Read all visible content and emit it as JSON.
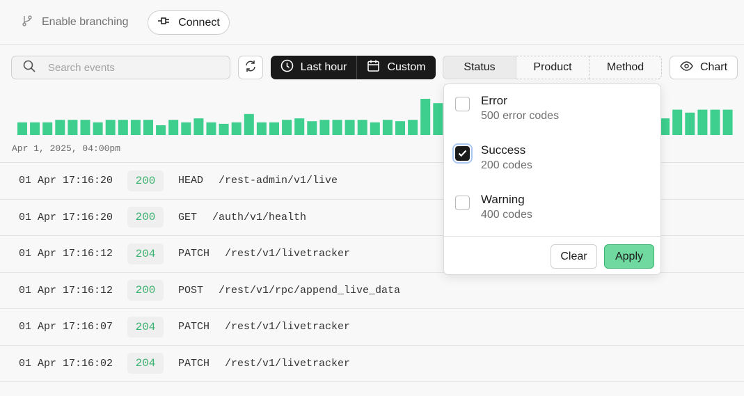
{
  "topbar": {
    "branching_label": "Enable branching",
    "connect_label": "Connect"
  },
  "toolbar": {
    "search_placeholder": "Search events",
    "last_hour_label": "Last hour",
    "custom_label": "Custom",
    "filters": [
      "Status",
      "Product",
      "Method"
    ],
    "chart_label": "Chart"
  },
  "histogram": {
    "start_label": "Apr 1, 2025, 04:00pm",
    "color": "#3ecf8e",
    "bar_levels": [
      0.35,
      0.35,
      0.35,
      0.42,
      0.42,
      0.42,
      0.35,
      0.42,
      0.42,
      0.42,
      0.42,
      0.27,
      0.42,
      0.35,
      0.46,
      0.35,
      0.31,
      0.35,
      0.58,
      0.35,
      0.35,
      0.42,
      0.46,
      0.38,
      0.42,
      0.42,
      0.42,
      0.42,
      0.35,
      0.42,
      0.38,
      0.42,
      1.0,
      0.88,
      0.42,
      0.42,
      0.42,
      0.42,
      0.42,
      0.42,
      0.42,
      0.42,
      0.42,
      0.42,
      0.42,
      0.42,
      0.42,
      0.42,
      0.42,
      0.42,
      0.42,
      0.46,
      0.7,
      0.62,
      0.7,
      0.7,
      0.7
    ]
  },
  "events": [
    {
      "time": "01 Apr 17:16:20",
      "code": "200",
      "method": "HEAD",
      "path": "/rest-admin/v1/live"
    },
    {
      "time": "01 Apr 17:16:20",
      "code": "200",
      "method": "GET",
      "path": "/auth/v1/health"
    },
    {
      "time": "01 Apr 17:16:12",
      "code": "204",
      "method": "PATCH",
      "path": "/rest/v1/livetracker"
    },
    {
      "time": "01 Apr 17:16:12",
      "code": "200",
      "method": "POST",
      "path": "/rest/v1/rpc/append_live_data"
    },
    {
      "time": "01 Apr 17:16:07",
      "code": "204",
      "method": "PATCH",
      "path": "/rest/v1/livetracker"
    },
    {
      "time": "01 Apr 17:16:02",
      "code": "204",
      "method": "PATCH",
      "path": "/rest/v1/livetracker"
    }
  ],
  "status_dropdown": {
    "options": [
      {
        "label": "Error",
        "desc": "500 error codes",
        "checked": false
      },
      {
        "label": "Success",
        "desc": "200 codes",
        "checked": true
      },
      {
        "label": "Warning",
        "desc": "400 codes",
        "checked": false
      }
    ],
    "clear_label": "Clear",
    "apply_label": "Apply"
  }
}
